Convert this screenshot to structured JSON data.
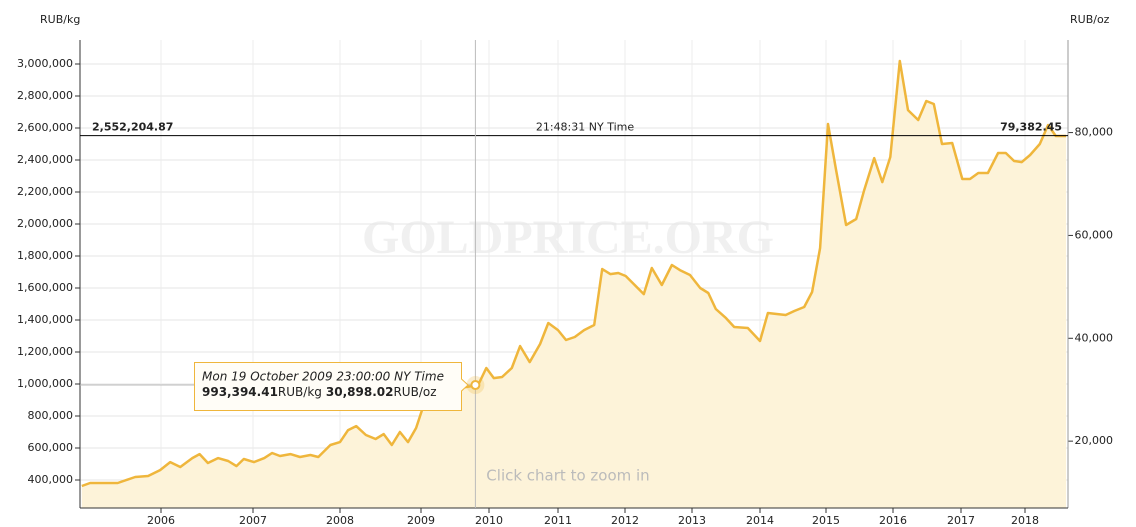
{
  "chart_data": {
    "type": "area",
    "y_label": "RUB/kg",
    "y2_label": "RUB/oz",
    "watermark": "GOLDPRICE.ORG",
    "hint": "Click chart to zoom in",
    "color": "#efb63c",
    "fill": "#fdf3d9",
    "grid": true,
    "x": [
      2005.14,
      2005.23,
      2005.53,
      2005.72,
      2005.86,
      2005.99,
      2006.1,
      2006.21,
      2006.34,
      2006.42,
      2006.51,
      2006.62,
      2006.73,
      2006.82,
      2006.9,
      2007.01,
      2007.13,
      2007.22,
      2007.31,
      2007.43,
      2007.54,
      2007.66,
      2007.75,
      2007.89,
      2008.0,
      2008.1,
      2008.2,
      2008.32,
      2008.44,
      2008.54,
      2008.64,
      2008.74,
      2008.84,
      2008.94,
      2009.04,
      2009.16,
      2009.28,
      2009.43,
      2009.57,
      2009.84,
      2009.96,
      2010.07,
      2010.19,
      2010.33,
      2010.45,
      2010.59,
      2010.74,
      2010.86,
      2011.0,
      2011.12,
      2011.25,
      2011.39,
      2011.54,
      2011.66,
      2011.78,
      2011.9,
      2012.01,
      2012.13,
      2012.28,
      2012.4,
      2012.55,
      2012.7,
      2012.82,
      2012.97,
      2013.12,
      2013.24,
      2013.35,
      2013.5,
      2013.62,
      2013.82,
      2014.0,
      2014.12,
      2014.27,
      2014.39,
      2014.52,
      2014.67,
      2014.79,
      2014.91,
      2015.03,
      2015.15,
      2015.3,
      2015.45,
      2015.57,
      2015.72,
      2015.84,
      2015.96,
      2016.1,
      2016.22,
      2016.37,
      2016.49,
      2016.6,
      2016.72,
      2016.87,
      2017.02,
      2017.14,
      2017.27,
      2017.42,
      2017.58,
      2017.7,
      2017.83,
      2017.95,
      2018.08,
      2018.23,
      2018.36,
      2018.48,
      2018.64
    ],
    "values": [
      362500,
      381000,
      381000,
      419000,
      425000,
      462000,
      512000,
      481000,
      537000,
      562000,
      506000,
      537000,
      519000,
      487000,
      531000,
      512000,
      537000,
      569000,
      550000,
      562000,
      544000,
      556000,
      544000,
      619000,
      637000,
      712000,
      737000,
      681000,
      656000,
      687000,
      619000,
      700000,
      637000,
      725000,
      869000,
      931000,
      944000,
      962000,
      975000,
      993000,
      1100000,
      1037000,
      1044000,
      1100000,
      1237000,
      1137000,
      1250000,
      1381000,
      1337000,
      1275000,
      1294000,
      1337000,
      1369000,
      1719000,
      1687000,
      1694000,
      1675000,
      1625000,
      1562000,
      1725000,
      1619000,
      1744000,
      1712000,
      1681000,
      1600000,
      1569000,
      1469000,
      1412000,
      1356000,
      1350000,
      1269000,
      1444000,
      1437000,
      1431000,
      1456000,
      1481000,
      1575000,
      1850000,
      2625000,
      2337000,
      1994000,
      2031000,
      2212000,
      2412000,
      2262000,
      2419000,
      3019000,
      2712000,
      2650000,
      2769000,
      2750000,
      2500000,
      2506000,
      2281000,
      2281000,
      2319000,
      2319000,
      2444000,
      2444000,
      2394000,
      2387000,
      2431000,
      2500000,
      2619000,
      2550000,
      2550000
    ],
    "xlim": [
      2005.12,
      2018.67
    ],
    "xticks": [
      2006,
      2007,
      2008,
      2009,
      2010,
      2011,
      2012,
      2013,
      2014,
      2015,
      2016,
      2017,
      2018
    ],
    "ylim": [
      225000,
      3150000
    ],
    "yticks": [
      {
        "value": 400000,
        "label": "400,000"
      },
      {
        "value": 600000,
        "label": "600,000"
      },
      {
        "value": 800000,
        "label": "800,000"
      },
      {
        "value": 1000000,
        "label": "1,000,000"
      },
      {
        "value": 1200000,
        "label": "1,200,000"
      },
      {
        "value": 1400000,
        "label": "1,400,000"
      },
      {
        "value": 1600000,
        "label": "1,600,000"
      },
      {
        "value": 1800000,
        "label": "1,800,000"
      },
      {
        "value": 2000000,
        "label": "2,000,000"
      },
      {
        "value": 2200000,
        "label": "2,200,000"
      },
      {
        "value": 2400000,
        "label": "2,400,000"
      },
      {
        "value": 2600000,
        "label": "2,600,000"
      },
      {
        "value": 2800000,
        "label": "2,800,000"
      },
      {
        "value": 3000000,
        "label": "3,000,000"
      }
    ],
    "y2lim": [
      7000,
      98000
    ],
    "y2ticks": [
      {
        "value": 20000,
        "label": "20,000"
      },
      {
        "value": 40000,
        "label": "40,000"
      },
      {
        "value": 60000,
        "label": "60,000"
      },
      {
        "value": 80000,
        "label": "80,000"
      }
    ],
    "current": {
      "value": 2552204.87,
      "label": "2,552,204.87",
      "time": "21:48:31 NY Time",
      "value2": 79382.45,
      "value2_label": "79,382.45"
    },
    "tooltip": {
      "date": "Mon 19 October 2009 23:00:00 NY Time",
      "x": 2009.8,
      "value": 993394.41,
      "value_label": "993,394.41",
      "unit": "RUB/kg",
      "value2": 30898.02,
      "value2_label": "30,898.02",
      "unit2": "RUB/oz"
    }
  }
}
